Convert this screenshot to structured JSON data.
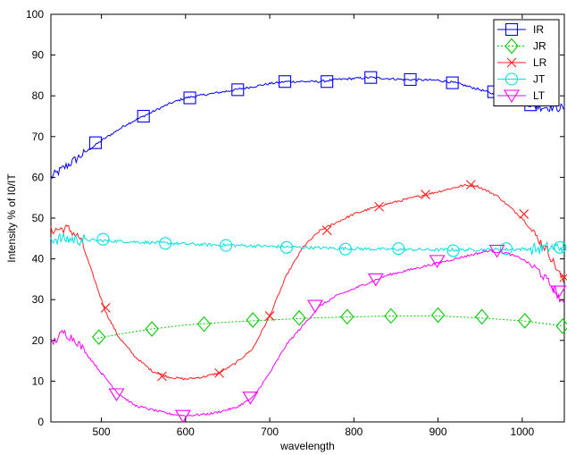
{
  "chart_data": {
    "type": "line",
    "title": "",
    "xlabel": "wavelength",
    "ylabel": "Intensity % of I0/IT",
    "xlim": [
      440,
      1050
    ],
    "ylim": [
      0,
      100
    ],
    "x_ticks": [
      "500",
      "600",
      "700",
      "800",
      "900",
      "1000"
    ],
    "y_ticks": [
      "0",
      "10",
      "20",
      "30",
      "40",
      "50",
      "60",
      "70",
      "80",
      "90",
      "100"
    ],
    "grid": false,
    "legend_position": "top-right",
    "series": [
      {
        "name": "IR",
        "color": "#0000ff",
        "line": "solid",
        "marker": "square",
        "points": [
          [
            440,
            60
          ],
          [
            460,
            63
          ],
          [
            480,
            66
          ],
          [
            500,
            69
          ],
          [
            530,
            73
          ],
          [
            550,
            75
          ],
          [
            580,
            78
          ],
          [
            600,
            79.5
          ],
          [
            630,
            80.5
          ],
          [
            660,
            81.5
          ],
          [
            700,
            83
          ],
          [
            720,
            83.5
          ],
          [
            760,
            83.5
          ],
          [
            780,
            84
          ],
          [
            820,
            84.5
          ],
          [
            860,
            84
          ],
          [
            900,
            83.8
          ],
          [
            920,
            83.2
          ],
          [
            950,
            81.5
          ],
          [
            980,
            79.5
          ],
          [
            1010,
            77.5
          ],
          [
            1050,
            77
          ]
        ],
        "markers": [
          [
            493,
            68.5
          ],
          [
            550,
            75
          ],
          [
            605,
            79.5
          ],
          [
            662,
            81.5
          ],
          [
            718,
            83.5
          ],
          [
            768,
            83.5
          ],
          [
            820,
            84.5
          ],
          [
            867,
            84
          ],
          [
            917,
            83.2
          ],
          [
            966,
            81
          ],
          [
            1010,
            77.8
          ]
        ]
      },
      {
        "name": "JR",
        "color": "#00cc00",
        "line": "dotted",
        "marker": "diamond",
        "points": [
          [
            495,
            20.5
          ],
          [
            520,
            21.5
          ],
          [
            560,
            22.8
          ],
          [
            600,
            23.8
          ],
          [
            650,
            24.5
          ],
          [
            700,
            25
          ],
          [
            750,
            25.5
          ],
          [
            800,
            25.8
          ],
          [
            850,
            26
          ],
          [
            900,
            26
          ],
          [
            950,
            25.5
          ],
          [
            1000,
            24.8
          ],
          [
            1050,
            23.5
          ]
        ],
        "markers": [
          [
            497,
            20.8
          ],
          [
            560,
            22.8
          ],
          [
            622,
            24
          ],
          [
            680,
            25
          ],
          [
            735,
            25.5
          ],
          [
            792,
            25.8
          ],
          [
            844,
            26
          ],
          [
            900,
            26.2
          ],
          [
            952,
            25.8
          ],
          [
            1003,
            24.8
          ],
          [
            1048,
            23.5
          ]
        ]
      },
      {
        "name": "LR",
        "color": "#ff2020",
        "line": "solid",
        "marker": "x",
        "points": [
          [
            440,
            47
          ],
          [
            460,
            47.5
          ],
          [
            475,
            45
          ],
          [
            490,
            36
          ],
          [
            505,
            27
          ],
          [
            520,
            21
          ],
          [
            540,
            16
          ],
          [
            560,
            12.5
          ],
          [
            580,
            11
          ],
          [
            600,
            10.5
          ],
          [
            620,
            11
          ],
          [
            640,
            12
          ],
          [
            660,
            14.5
          ],
          [
            680,
            18
          ],
          [
            700,
            26
          ],
          [
            720,
            36
          ],
          [
            740,
            43
          ],
          [
            760,
            47
          ],
          [
            800,
            51
          ],
          [
            830,
            53
          ],
          [
            870,
            55
          ],
          [
            900,
            56.5
          ],
          [
            930,
            58
          ],
          [
            945,
            58
          ],
          [
            970,
            55.5
          ],
          [
            1000,
            50
          ],
          [
            1030,
            42
          ],
          [
            1050,
            34
          ]
        ],
        "markers": [
          [
            505,
            28
          ],
          [
            572,
            11.2
          ],
          [
            640,
            12
          ],
          [
            700,
            26
          ],
          [
            768,
            47
          ],
          [
            830,
            52.8
          ],
          [
            885,
            55.8
          ],
          [
            939,
            58.2
          ],
          [
            1002,
            51
          ],
          [
            1050,
            35.5
          ]
        ]
      },
      {
        "name": "JT",
        "color": "#00e0e0",
        "line": "solid",
        "marker": "circle",
        "points": [
          [
            440,
            45
          ],
          [
            500,
            44.5
          ],
          [
            560,
            44
          ],
          [
            620,
            43.5
          ],
          [
            680,
            43.2
          ],
          [
            740,
            42.8
          ],
          [
            800,
            42.5
          ],
          [
            860,
            42.3
          ],
          [
            920,
            42.2
          ],
          [
            980,
            42.3
          ],
          [
            1020,
            42.5
          ],
          [
            1050,
            43
          ]
        ],
        "markers": [
          [
            502,
            44.8
          ],
          [
            576,
            43.8
          ],
          [
            648,
            43.3
          ],
          [
            720,
            42.8
          ],
          [
            790,
            42.4
          ],
          [
            853,
            42.5
          ],
          [
            918,
            42
          ],
          [
            981,
            42.5
          ],
          [
            1045,
            42.8
          ]
        ]
      },
      {
        "name": "LT",
        "color": "#ff00ff",
        "line": "solid",
        "marker": "triangle-down",
        "points": [
          [
            440,
            19
          ],
          [
            455,
            22
          ],
          [
            470,
            20
          ],
          [
            485,
            16
          ],
          [
            500,
            12
          ],
          [
            520,
            7
          ],
          [
            540,
            4
          ],
          [
            560,
            3
          ],
          [
            580,
            2
          ],
          [
            600,
            1.5
          ],
          [
            630,
            2
          ],
          [
            660,
            3.5
          ],
          [
            680,
            6
          ],
          [
            700,
            12
          ],
          [
            720,
            19
          ],
          [
            745,
            25
          ],
          [
            760,
            28.5
          ],
          [
            780,
            31
          ],
          [
            810,
            33.5
          ],
          [
            840,
            36
          ],
          [
            870,
            37.5
          ],
          [
            900,
            39
          ],
          [
            930,
            40.5
          ],
          [
            960,
            42
          ],
          [
            980,
            41.5
          ],
          [
            1000,
            40
          ],
          [
            1020,
            37
          ],
          [
            1040,
            32
          ],
          [
            1050,
            28
          ]
        ],
        "markers": [
          [
            518,
            6.8
          ],
          [
            597,
            1.5
          ],
          [
            677,
            6
          ],
          [
            754,
            28.5
          ],
          [
            826,
            35
          ],
          [
            899,
            39.5
          ],
          [
            970,
            42
          ],
          [
            1043,
            32
          ]
        ]
      }
    ]
  }
}
